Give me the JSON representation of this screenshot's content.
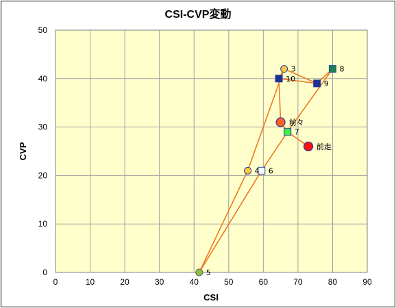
{
  "chart_data": {
    "type": "scatter",
    "title": "CSI-CVP変動",
    "xlabel": "CSI",
    "ylabel": "CVP",
    "xlim": [
      0,
      90
    ],
    "ylim": [
      0,
      50
    ],
    "xticks": [
      "0",
      "10",
      "20",
      "30",
      "40",
      "50",
      "60",
      "70",
      "80",
      "90"
    ],
    "yticks": [
      "0",
      "10",
      "20",
      "30",
      "40",
      "50"
    ],
    "grid": true,
    "plot_background": "#ffffcc",
    "line_color": "#f07820",
    "path_order": [
      "3",
      "10",
      "9",
      "8",
      "7",
      "前走"
    ],
    "path_segments": [
      [
        "5",
        "4"
      ],
      [
        "4",
        "3"
      ],
      [
        "3",
        "10"
      ],
      [
        "10",
        "前々"
      ],
      [
        "3",
        "9"
      ],
      [
        "10",
        "9"
      ],
      [
        "9",
        "8"
      ],
      [
        "8",
        "7"
      ],
      [
        "7",
        "前走"
      ],
      [
        "7",
        "6"
      ],
      [
        "6",
        "5"
      ],
      [
        "前々",
        "7"
      ]
    ],
    "points": [
      {
        "label": "3",
        "x": 66,
        "y": 42,
        "marker": "circle",
        "fill": "#ffc840",
        "stroke": "#1f3fa0"
      },
      {
        "label": "4",
        "x": 55.5,
        "y": 21,
        "marker": "circle",
        "fill": "#ffc840",
        "stroke": "#1f3fa0"
      },
      {
        "label": "5",
        "x": 41.5,
        "y": 0,
        "marker": "circle",
        "fill": "#8cc43c",
        "stroke": "#606060"
      },
      {
        "label": "6",
        "x": 59.5,
        "y": 21,
        "marker": "square",
        "fill": "#ffffff",
        "stroke": "#1f3fa0"
      },
      {
        "label": "7",
        "x": 67,
        "y": 29,
        "marker": "square",
        "fill": "#44ee44",
        "stroke": "#1f3fa0"
      },
      {
        "label": "8",
        "x": 80,
        "y": 42,
        "marker": "square",
        "fill": "#1f8050",
        "stroke": "#1f3fa0"
      },
      {
        "label": "9",
        "x": 75.5,
        "y": 39,
        "marker": "square",
        "fill": "#1f2f90",
        "stroke": "#1f3fa0"
      },
      {
        "label": "10",
        "x": 64.5,
        "y": 40,
        "marker": "square",
        "fill": "#1f2f90",
        "stroke": "#1f3fa0"
      },
      {
        "label": "前々",
        "x": 65,
        "y": 31,
        "marker": "big-circle",
        "fill": "#ff6020",
        "stroke": "#1f3fa0"
      },
      {
        "label": "前走",
        "x": 73,
        "y": 26,
        "marker": "big-circle",
        "fill": "#ff1010",
        "stroke": "#1f3fa0"
      }
    ]
  }
}
